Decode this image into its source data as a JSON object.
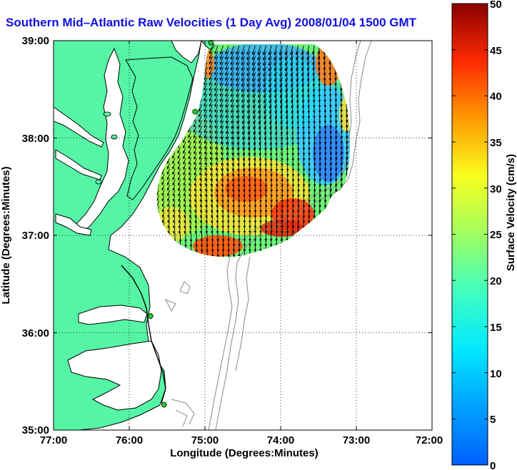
{
  "chart_data": {
    "type": "vector-map",
    "title": "Southern Mid–Atlantic Raw Velocities (1 Day Avg) 2008/01/04 1500 GMT",
    "xlabel": "Longitude (Degrees:Minutes)",
    "ylabel": "Latitude (Degrees:Minutes)",
    "x_ticks": [
      "77:00",
      "76:00",
      "75:00",
      "74:00",
      "73:00",
      "72:00"
    ],
    "x_tick_values": [
      -77,
      -76,
      -75,
      -74,
      -73,
      -72
    ],
    "y_ticks": [
      "39:00",
      "38:00",
      "37:00",
      "36:00",
      "35:00"
    ],
    "y_tick_values": [
      39,
      38,
      37,
      36,
      35
    ],
    "xlim": [
      -77,
      -72
    ],
    "ylim": [
      35,
      39
    ],
    "grid": true,
    "colorbar": {
      "label": "Surface Velocity (cm/s)",
      "ticks": [
        "50",
        "45",
        "40",
        "35",
        "30",
        "25",
        "20",
        "15",
        "10",
        "5",
        "0"
      ],
      "tick_values": [
        50,
        45,
        40,
        35,
        30,
        25,
        20,
        15,
        10,
        5,
        0
      ],
      "range": [
        0,
        50
      ],
      "colormap": "jet"
    },
    "colors": {
      "land": "#55f5a5",
      "coast": "#000000",
      "bathymetry": "#8a8a8a",
      "grid": "#000000",
      "station": "#22cc22"
    },
    "stations_lon_lat": [
      [
        -74.92,
        38.98
      ],
      [
        -75.13,
        38.27
      ],
      [
        -75.72,
        36.17
      ],
      [
        -75.54,
        35.26
      ]
    ]
  }
}
